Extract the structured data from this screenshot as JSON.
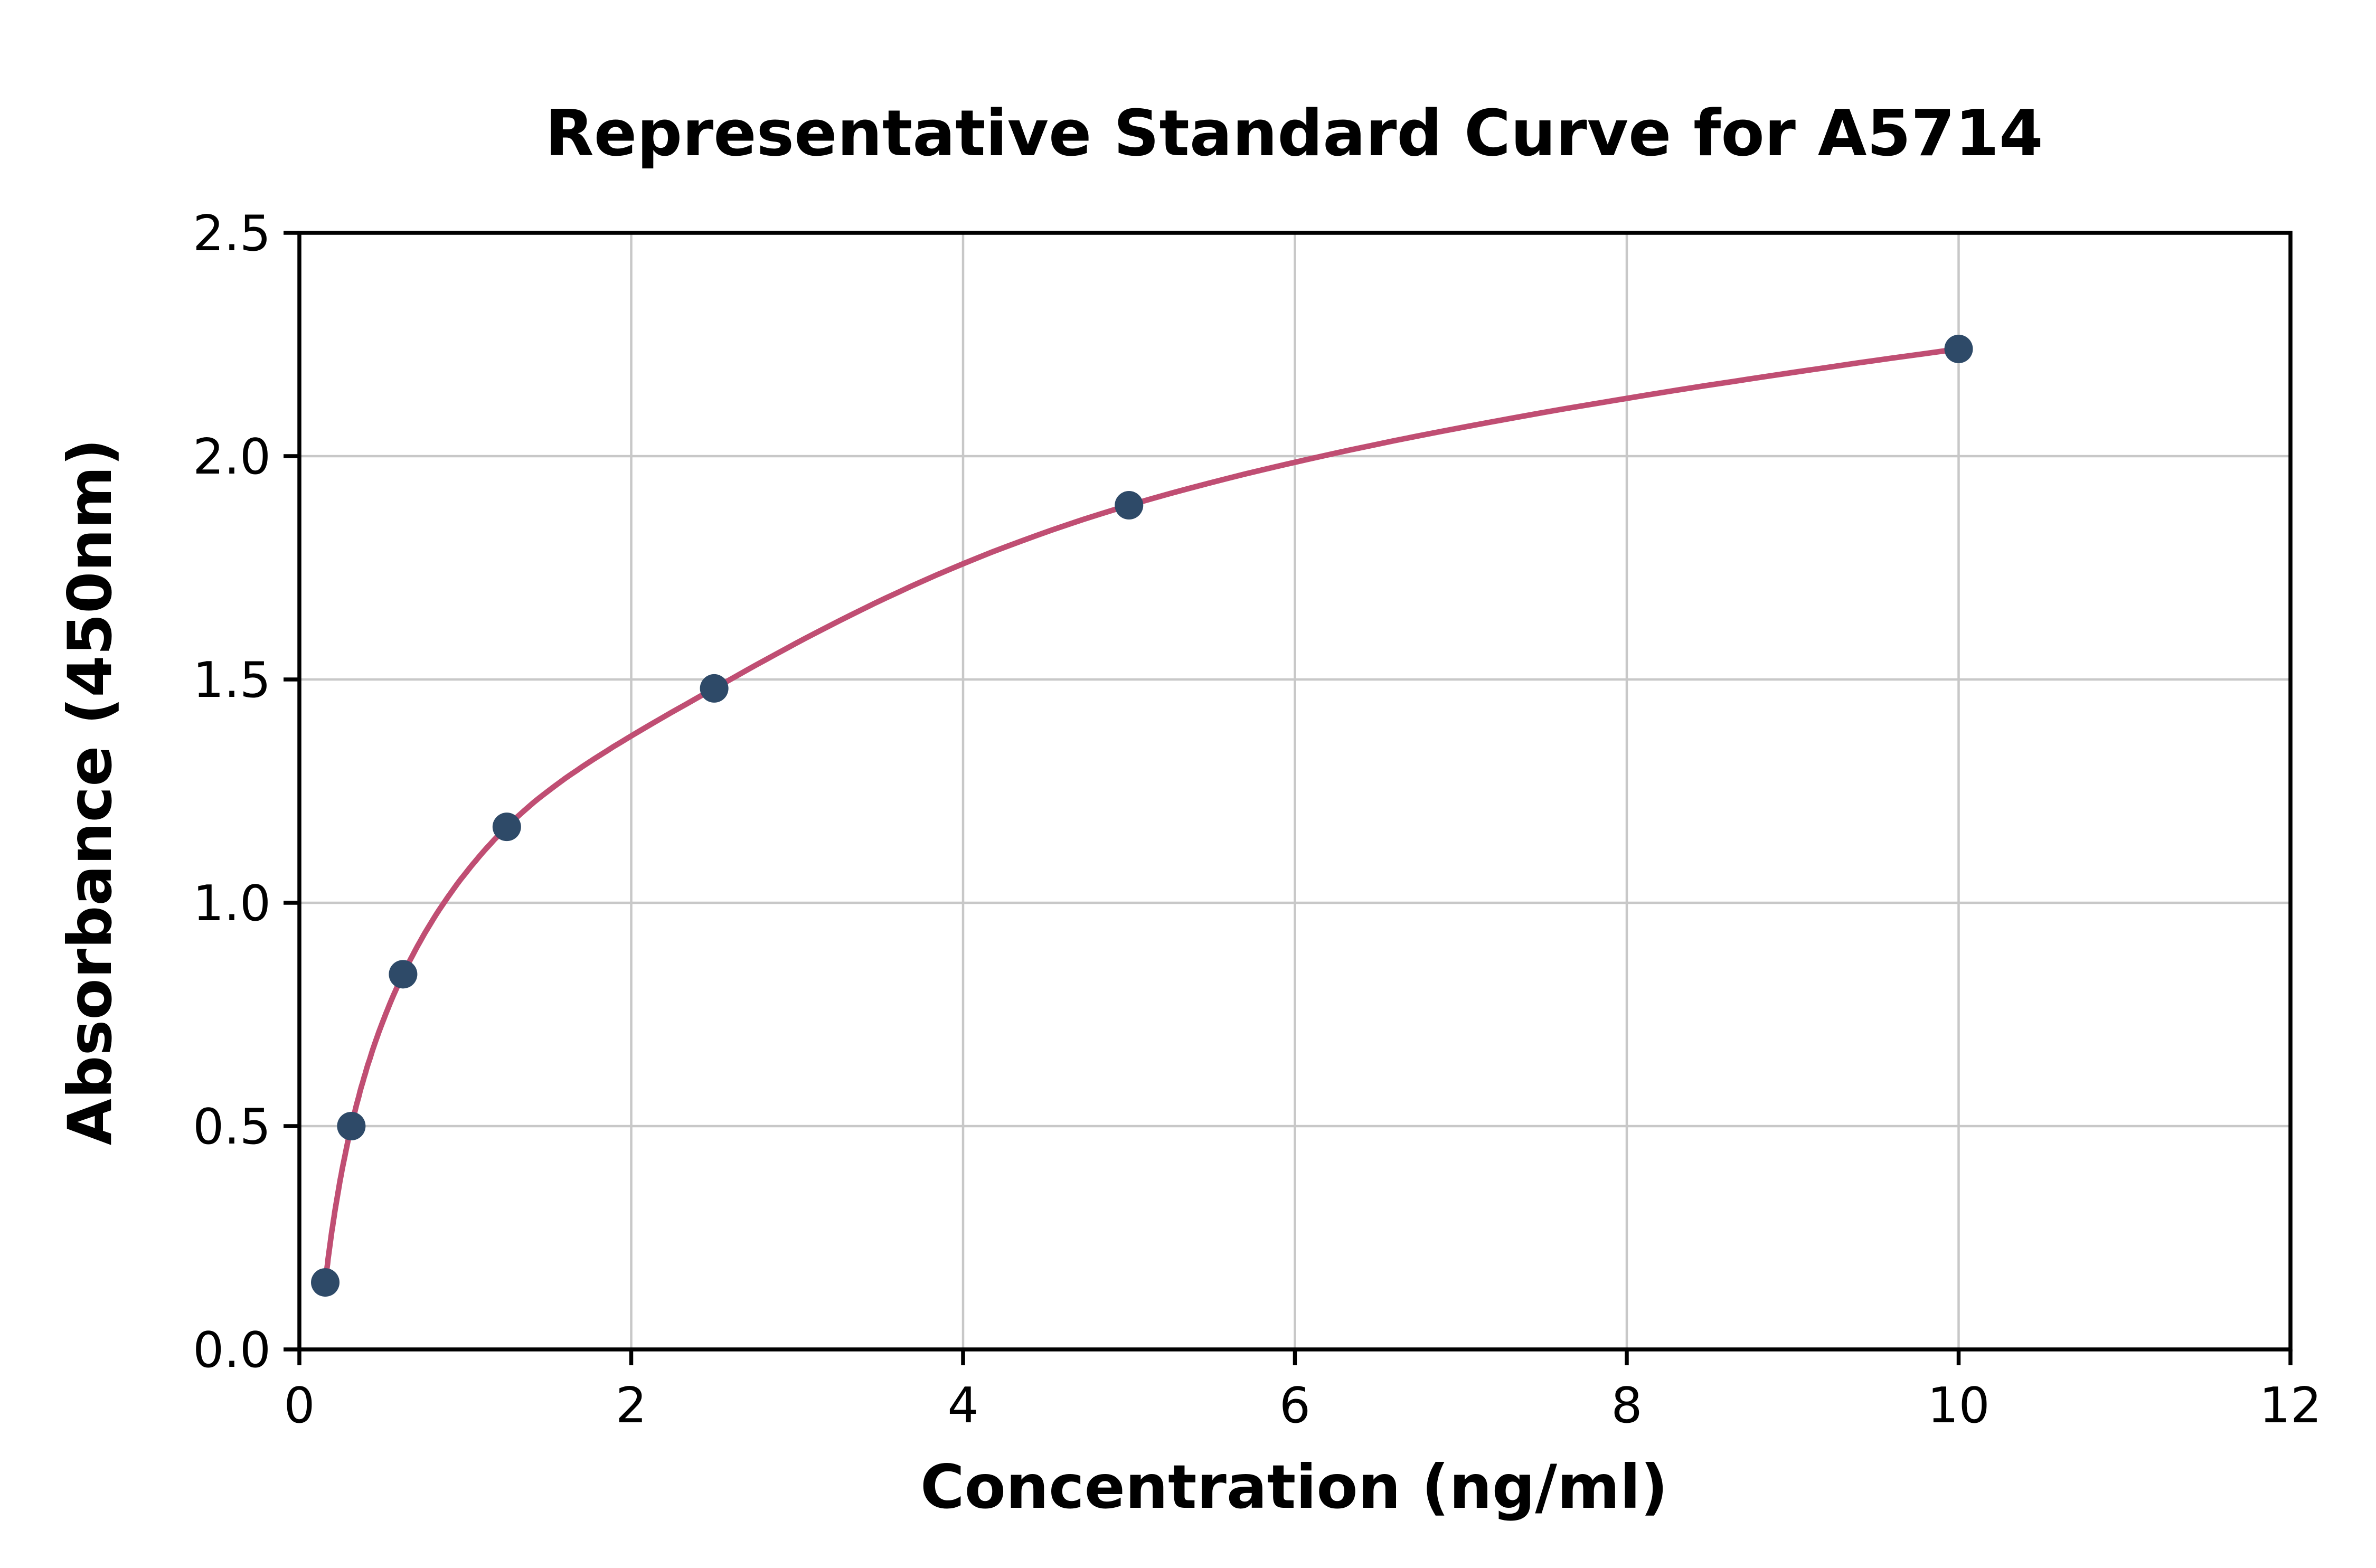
{
  "chart_data": {
    "type": "scatter",
    "title": "Representative Standard Curve for A5714",
    "xlabel": "Concentration (ng/ml)",
    "ylabel": "Absorbance (450nm)",
    "xlim": [
      0,
      12
    ],
    "ylim": [
      0,
      2.5
    ],
    "xticks": [
      0,
      2,
      4,
      6,
      8,
      10,
      12
    ],
    "xtick_labels": [
      "0",
      "2",
      "4",
      "6",
      "8",
      "10",
      "12"
    ],
    "yticks": [
      0.0,
      0.5,
      1.0,
      1.5,
      2.0,
      2.5
    ],
    "ytick_labels": [
      "0.0",
      "0.5",
      "1.0",
      "1.5",
      "2.0",
      "2.5"
    ],
    "grid": true,
    "legend": "none",
    "points": [
      {
        "x": 0.156,
        "y": 0.15
      },
      {
        "x": 0.313,
        "y": 0.5
      },
      {
        "x": 0.625,
        "y": 0.84
      },
      {
        "x": 1.25,
        "y": 1.17
      },
      {
        "x": 2.5,
        "y": 1.48
      },
      {
        "x": 5,
        "y": 1.89
      },
      {
        "x": 10,
        "y": 2.24
      }
    ],
    "curve_fit": "logarithmic-through-points",
    "curve_color": "#c04e73",
    "point_color": "#2e4a68",
    "grid_color": "#c8c8c8",
    "axis_color": "#000000",
    "background_color": "#ffffff"
  }
}
